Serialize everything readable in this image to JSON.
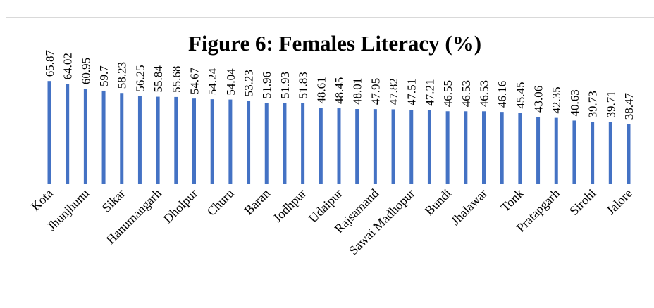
{
  "chart_data": {
    "type": "bar",
    "title": "Figure 6: Females Literacy (%)",
    "categories": [
      "Kota",
      null,
      "Jhunjhunu",
      null,
      "Sikar",
      null,
      "Hanumangarh",
      null,
      "Dholpur",
      null,
      "Churu",
      null,
      "Baran",
      null,
      "Jodhpur",
      null,
      "Udaipur",
      null,
      "Rajsamand",
      null,
      "Sawai Madhopur",
      null,
      "Bundi",
      null,
      "Jhalawar",
      null,
      "Tonk",
      null,
      "Pratapgarh",
      null,
      "Sirohi",
      null,
      "Jalore"
    ],
    "values": [
      65.87,
      64.02,
      60.95,
      59.7,
      58.23,
      56.25,
      55.84,
      55.68,
      54.67,
      54.24,
      54.04,
      53.23,
      51.96,
      51.93,
      51.83,
      48.61,
      48.45,
      48.01,
      47.95,
      47.82,
      47.51,
      47.21,
      46.55,
      46.53,
      46.53,
      46.16,
      45.45,
      43.06,
      42.35,
      40.63,
      39.73,
      39.71,
      38.47
    ],
    "color": "#4472c4",
    "ylim": [
      0,
      70
    ]
  }
}
